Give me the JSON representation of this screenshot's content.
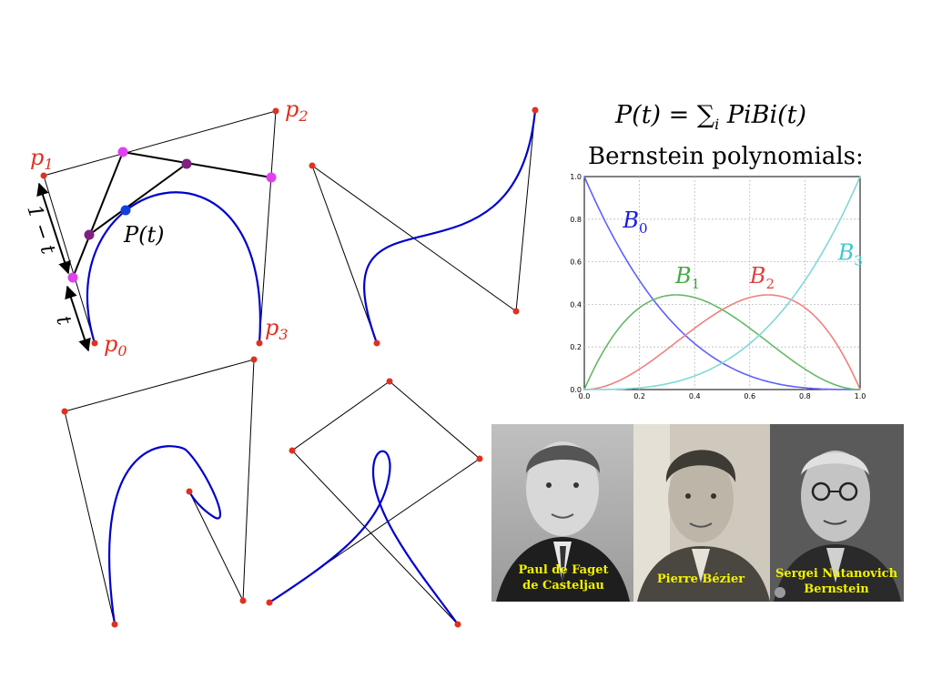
{
  "colors": {
    "curve": "#0000cc",
    "control_point": "#e03020",
    "label": "#e03020",
    "level1": "#e040f0",
    "level2": "#802080",
    "result_point": "#1040e0",
    "b0": "#6060ff",
    "b1": "#66b866",
    "b2": "#f08080",
    "b3": "#80d8d8",
    "caption": "#f2f200"
  },
  "diagram": {
    "p0_label": "p0",
    "p1_label": "p1",
    "p2_label": "p2",
    "p3_label": "p3",
    "point_label": "P(t)",
    "one_minus_t_label": "1 − t",
    "t_label": "t"
  },
  "formula": {
    "lhs": "P(t) = ",
    "sum": "∑",
    "index": "i",
    "rhs": " PiBi(t)"
  },
  "bernstein_title": "Bernstein polynomials:",
  "chart_data": {
    "type": "line",
    "x_ticks": [
      "0.0",
      "0.2",
      "0.4",
      "0.6",
      "0.8",
      "1.0"
    ],
    "y_ticks": [
      "0.0",
      "0.2",
      "0.4",
      "0.6",
      "0.8",
      "1.0"
    ],
    "xlim": [
      0,
      1
    ],
    "ylim": [
      0,
      1
    ],
    "grid": true,
    "series": [
      {
        "name": "B0",
        "formula": "(1-t)^3",
        "color": "#6060ff"
      },
      {
        "name": "B1",
        "formula": "3t(1-t)^2",
        "color": "#66b866"
      },
      {
        "name": "B2",
        "formula": "3t^2(1-t)",
        "color": "#f08080"
      },
      {
        "name": "B3",
        "formula": "t^3",
        "color": "#80d8d8"
      }
    ],
    "labels": [
      {
        "text": "B",
        "sub": "0",
        "color": "#1a1ae0"
      },
      {
        "text": "B",
        "sub": "1",
        "color": "#44aa44"
      },
      {
        "text": "B",
        "sub": "2",
        "color": "#e04040"
      },
      {
        "text": "B",
        "sub": "3",
        "color": "#40c8c8"
      }
    ]
  },
  "portraits": [
    {
      "caption_line1": "Paul de Faget",
      "caption_line2": "de Casteljau"
    },
    {
      "caption_line1": "Pierre Bézier",
      "caption_line2": ""
    },
    {
      "caption_line1": "Sergei Natanovich",
      "caption_line2": "Bernstein"
    }
  ]
}
